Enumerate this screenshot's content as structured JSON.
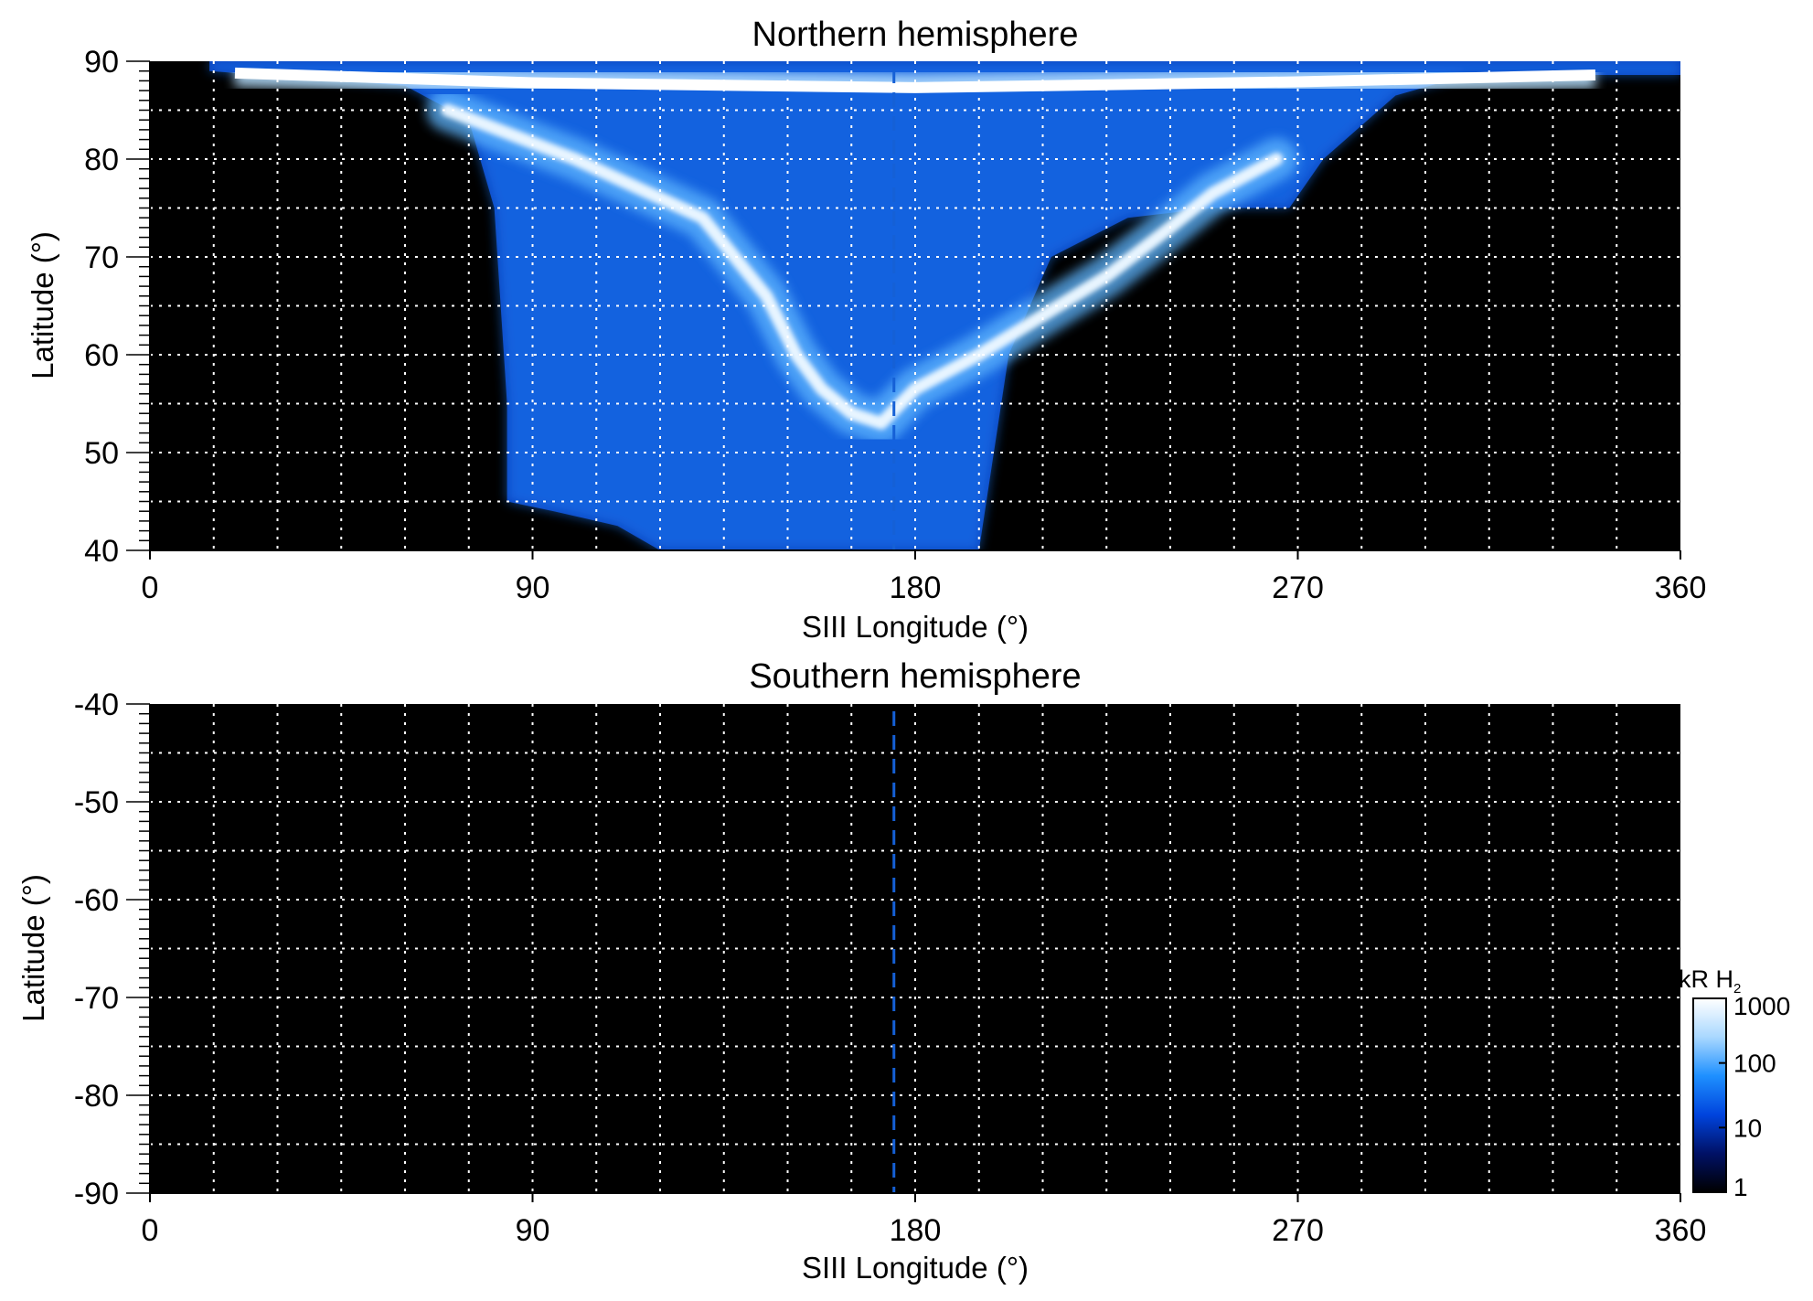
{
  "chart_data": [
    {
      "type": "heatmap",
      "title": "Northern hemisphere",
      "xlabel": "SIII Longitude (°)",
      "ylabel": "Latitude (°)",
      "xlim": [
        0,
        360
      ],
      "ylim": [
        40,
        90
      ],
      "xticks": [
        "0",
        "90",
        "180",
        "270",
        "360"
      ],
      "xtick_values": [
        0,
        90,
        180,
        270,
        360
      ],
      "yticks": [
        "40",
        "50",
        "60",
        "70",
        "80",
        "90"
      ],
      "ytick_values": [
        40,
        50,
        60,
        70,
        80,
        90
      ],
      "grid": true,
      "grid_x_step": 15,
      "grid_y_step": 5,
      "reference_line_longitude": 175,
      "colormap": "black-blue-white",
      "background": "#000000",
      "data_coverage_lower_boundary": [
        [
          14,
          89.0
        ],
        [
          60,
          87.5
        ],
        [
          75,
          84
        ],
        [
          81,
          75
        ],
        [
          84,
          55
        ],
        [
          84,
          45
        ],
        [
          95,
          44
        ],
        [
          110,
          42.5
        ],
        [
          120,
          40
        ],
        [
          195,
          40
        ],
        [
          202,
          60
        ],
        [
          212,
          70
        ],
        [
          230,
          74
        ],
        [
          250,
          75
        ],
        [
          268,
          75
        ],
        [
          276,
          80
        ],
        [
          293,
          86.5
        ],
        [
          310,
          88.6
        ],
        [
          360,
          88.6
        ]
      ],
      "auroral_main_oval": [
        [
          70,
          85
        ],
        [
          100,
          80
        ],
        [
          130,
          74
        ],
        [
          145,
          66
        ],
        [
          152,
          60
        ],
        [
          158,
          56.5
        ],
        [
          165,
          54
        ],
        [
          172,
          53
        ],
        [
          180,
          56.5
        ],
        [
          195,
          60
        ],
        [
          210,
          64
        ],
        [
          225,
          68
        ],
        [
          240,
          73
        ],
        [
          250,
          76.5
        ],
        [
          265,
          80
        ]
      ],
      "bright_upper_band": [
        [
          20,
          88.8
        ],
        [
          90,
          87.8
        ],
        [
          180,
          87.3
        ],
        [
          270,
          87.9
        ],
        [
          340,
          88.6
        ]
      ],
      "intensity_scale_max_kR": 1000
    },
    {
      "type": "heatmap",
      "title": "Southern hemisphere",
      "xlabel": "SIII Longitude (°)",
      "ylabel": "Latitude (°)",
      "xlim": [
        0,
        360
      ],
      "ylim": [
        -90,
        -40
      ],
      "xticks": [
        "0",
        "90",
        "180",
        "270",
        "360"
      ],
      "xtick_values": [
        0,
        90,
        180,
        270,
        360
      ],
      "yticks": [
        "-40",
        "-50",
        "-60",
        "-70",
        "-80",
        "-90"
      ],
      "ytick_values": [
        -40,
        -50,
        -60,
        -70,
        -80,
        -90
      ],
      "grid": true,
      "grid_x_step": 15,
      "grid_y_step": 5,
      "reference_line_longitude": 175,
      "colormap": "black-blue-white",
      "background": "#000000",
      "note_visible": "no emission (uniform black)"
    }
  ],
  "colorbar": {
    "unit_main": "kR H",
    "unit_sub": "2",
    "scale": "log",
    "range": [
      1,
      1000
    ],
    "tick_labels": [
      "1000",
      "100",
      "10",
      "1"
    ],
    "tick_values": [
      1000,
      100,
      10,
      1
    ],
    "colors": [
      "#000000",
      "#001166",
      "#0044dd",
      "#1e90ff",
      "#a9d8ff",
      "#ffffff"
    ]
  },
  "colors": {
    "gridline": "#ffffff",
    "reference_line": "#1560d6",
    "plot_background": "#000000"
  }
}
